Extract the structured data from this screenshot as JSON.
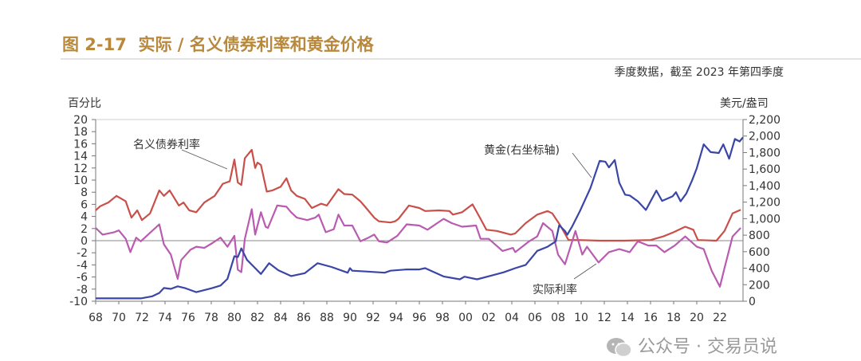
{
  "title": "图 2-17  实际 / 名义债券利率和黄金价格",
  "subtitle": "季度数据，截至 2023 年第四季度",
  "watermark": "公众号 · 交易员说",
  "chart_data": {
    "type": "line",
    "title": "图 2-17  实际 / 名义债券利率和黄金价格",
    "ylabel_left": "百分比",
    "ylabel_right": "美元/盎司",
    "xlim": [
      1968,
      2024
    ],
    "ylim_left": [
      -10,
      20
    ],
    "ylim_right": [
      0,
      2200
    ],
    "x_ticks": [
      "68",
      "70",
      "72",
      "74",
      "76",
      "78",
      "80",
      "82",
      "84",
      "86",
      "88",
      "90",
      "92",
      "94",
      "96",
      "98",
      "00",
      "02",
      "04",
      "06",
      "08",
      "10",
      "12",
      "14",
      "16",
      "18",
      "20",
      "22"
    ],
    "y_ticks_left": [
      "20",
      "18",
      "16",
      "14",
      "12",
      "10",
      "8",
      "6",
      "4",
      "2",
      "0",
      "-2",
      "-4",
      "-6",
      "-8",
      "-10"
    ],
    "y_ticks_right": [
      "2,200",
      "2,000",
      "1,800",
      "1,600",
      "1,400",
      "1,200",
      "1,000",
      "800",
      "600",
      "400",
      "200",
      "0"
    ],
    "grid": "zero line only",
    "colors": {
      "nominal": "#c9504a",
      "real": "#b95bb0",
      "gold": "#3a46a6"
    },
    "annotations": {
      "nominal": "名义债券利率",
      "gold": "黄金(右坐标轴)",
      "real": "实际利率"
    },
    "series": [
      {
        "name": "名义债券利率",
        "axis": "left",
        "points": [
          [
            1968,
            5.0
          ],
          [
            1968.4,
            5.7
          ],
          [
            1969.1,
            6.3
          ],
          [
            1969.8,
            7.4
          ],
          [
            1970.6,
            6.5
          ],
          [
            1971.1,
            3.8
          ],
          [
            1971.6,
            5.0
          ],
          [
            1972.0,
            3.4
          ],
          [
            1972.7,
            4.5
          ],
          [
            1973.5,
            8.3
          ],
          [
            1973.9,
            7.4
          ],
          [
            1974.4,
            8.3
          ],
          [
            1975.2,
            5.8
          ],
          [
            1975.6,
            6.3
          ],
          [
            1976.1,
            5.0
          ],
          [
            1976.7,
            4.7
          ],
          [
            1977.4,
            6.3
          ],
          [
            1978.3,
            7.4
          ],
          [
            1979.0,
            9.4
          ],
          [
            1979.6,
            9.8
          ],
          [
            1980.0,
            13.4
          ],
          [
            1980.3,
            9.6
          ],
          [
            1980.6,
            9.2
          ],
          [
            1980.9,
            13.6
          ],
          [
            1981.5,
            15.0
          ],
          [
            1981.8,
            12.0
          ],
          [
            1982.0,
            12.9
          ],
          [
            1982.3,
            12.5
          ],
          [
            1982.8,
            8.1
          ],
          [
            1983.3,
            8.3
          ],
          [
            1984.0,
            8.9
          ],
          [
            1984.5,
            10.3
          ],
          [
            1984.9,
            8.3
          ],
          [
            1985.4,
            7.4
          ],
          [
            1986.1,
            6.9
          ],
          [
            1986.7,
            5.4
          ],
          [
            1987.5,
            6.1
          ],
          [
            1988.0,
            5.8
          ],
          [
            1989.0,
            8.5
          ],
          [
            1989.5,
            7.7
          ],
          [
            1990.2,
            7.6
          ],
          [
            1990.9,
            6.5
          ],
          [
            1991.4,
            5.4
          ],
          [
            1992.1,
            3.8
          ],
          [
            1992.5,
            3.2
          ],
          [
            1993.5,
            3.0
          ],
          [
            1993.9,
            3.2
          ],
          [
            1994.2,
            3.6
          ],
          [
            1995.1,
            5.8
          ],
          [
            1996.0,
            5.4
          ],
          [
            1996.5,
            4.9
          ],
          [
            1997.7,
            5.0
          ],
          [
            1998.6,
            4.9
          ],
          [
            1998.9,
            4.3
          ],
          [
            1999.7,
            4.7
          ],
          [
            2000.6,
            6.0
          ],
          [
            2001.3,
            3.6
          ],
          [
            2001.8,
            1.8
          ],
          [
            2002.7,
            1.6
          ],
          [
            2003.9,
            1.0
          ],
          [
            2004.3,
            1.2
          ],
          [
            2005.2,
            2.9
          ],
          [
            2006.2,
            4.3
          ],
          [
            2007.1,
            4.9
          ],
          [
            2007.5,
            4.5
          ],
          [
            2008.2,
            2.5
          ],
          [
            2008.9,
            0.1
          ],
          [
            2009.8,
            0.1
          ],
          [
            2011.6,
            0
          ],
          [
            2013.7,
            0
          ],
          [
            2016.0,
            0.1
          ],
          [
            2017.1,
            0.7
          ],
          [
            2018.0,
            1.4
          ],
          [
            2019.0,
            2.3
          ],
          [
            2019.7,
            1.8
          ],
          [
            2020.1,
            0.1
          ],
          [
            2021.7,
            0
          ],
          [
            2022.4,
            1.6
          ],
          [
            2023.1,
            4.5
          ],
          [
            2023.8,
            5.1
          ]
        ]
      },
      {
        "name": "实际利率",
        "axis": "left",
        "points": [
          [
            1968,
            2.1
          ],
          [
            1968.6,
            1.0
          ],
          [
            1969.6,
            1.4
          ],
          [
            1970.0,
            1.7
          ],
          [
            1970.6,
            0.3
          ],
          [
            1971.0,
            -1.9
          ],
          [
            1971.5,
            0.5
          ],
          [
            1971.9,
            -0.1
          ],
          [
            1973.5,
            2.7
          ],
          [
            1973.9,
            -0.6
          ],
          [
            1974.5,
            -2.3
          ],
          [
            1975.1,
            -6.3
          ],
          [
            1975.4,
            -3.2
          ],
          [
            1976.2,
            -1.5
          ],
          [
            1976.7,
            -1.0
          ],
          [
            1977.4,
            -1.2
          ],
          [
            1978.1,
            -0.4
          ],
          [
            1978.8,
            0.5
          ],
          [
            1979.4,
            -1.0
          ],
          [
            1980.0,
            0.8
          ],
          [
            1980.3,
            -4.8
          ],
          [
            1980.6,
            -5.2
          ],
          [
            1980.9,
            0.3
          ],
          [
            1981.5,
            5.2
          ],
          [
            1981.8,
            1.0
          ],
          [
            1982.3,
            4.7
          ],
          [
            1982.7,
            2.3
          ],
          [
            1982.9,
            2.1
          ],
          [
            1983.7,
            5.8
          ],
          [
            1984.5,
            5.6
          ],
          [
            1984.9,
            4.7
          ],
          [
            1985.4,
            3.8
          ],
          [
            1986.3,
            3.4
          ],
          [
            1987.0,
            3.8
          ],
          [
            1987.3,
            4.3
          ],
          [
            1987.9,
            1.4
          ],
          [
            1988.6,
            1.9
          ],
          [
            1989.0,
            4.3
          ],
          [
            1989.5,
            2.5
          ],
          [
            1990.2,
            2.5
          ],
          [
            1990.9,
            -0.1
          ],
          [
            1991.6,
            0.5
          ],
          [
            1992.1,
            1.0
          ],
          [
            1992.5,
            -0.1
          ],
          [
            1993.2,
            -0.3
          ],
          [
            1994.1,
            0.8
          ],
          [
            1994.9,
            2.7
          ],
          [
            1996.0,
            2.5
          ],
          [
            1996.7,
            1.8
          ],
          [
            1998.1,
            3.6
          ],
          [
            1998.8,
            2.9
          ],
          [
            1999.7,
            2.3
          ],
          [
            2000.9,
            2.5
          ],
          [
            2001.3,
            0.3
          ],
          [
            2002.0,
            0.3
          ],
          [
            2003.2,
            -1.7
          ],
          [
            2004.1,
            -1.2
          ],
          [
            2004.3,
            -1.9
          ],
          [
            2005.5,
            -0.1
          ],
          [
            2006.2,
            0.7
          ],
          [
            2006.7,
            2.9
          ],
          [
            2007.5,
            1.6
          ],
          [
            2008.0,
            -2.3
          ],
          [
            2008.6,
            -3.9
          ],
          [
            2009.5,
            1.6
          ],
          [
            2010.1,
            -2.3
          ],
          [
            2010.5,
            -1.0
          ],
          [
            2011.5,
            -3.6
          ],
          [
            2012.4,
            -1.9
          ],
          [
            2013.3,
            -1.4
          ],
          [
            2014.2,
            -1.9
          ],
          [
            2014.9,
            -0.1
          ],
          [
            2015.8,
            -0.8
          ],
          [
            2016.5,
            -0.8
          ],
          [
            2017.2,
            -1.9
          ],
          [
            2018.1,
            -0.8
          ],
          [
            2019.0,
            0.7
          ],
          [
            2020.0,
            -1.0
          ],
          [
            2020.6,
            -1.4
          ],
          [
            2021.3,
            -5.0
          ],
          [
            2022.0,
            -7.6
          ],
          [
            2022.4,
            -4.5
          ],
          [
            2023.1,
            0.7
          ],
          [
            2023.8,
            2.1
          ]
        ]
      },
      {
        "name": "黄金(右坐标轴)",
        "axis": "right",
        "points": [
          [
            1968,
            35
          ],
          [
            1971.9,
            35
          ],
          [
            1972.9,
            60
          ],
          [
            1973.5,
            100
          ],
          [
            1973.9,
            160
          ],
          [
            1974.5,
            150
          ],
          [
            1975.1,
            180
          ],
          [
            1975.7,
            160
          ],
          [
            1976.7,
            110
          ],
          [
            1978.1,
            160
          ],
          [
            1978.8,
            190
          ],
          [
            1979.4,
            270
          ],
          [
            1980.0,
            545
          ],
          [
            1980.3,
            535
          ],
          [
            1980.6,
            640
          ],
          [
            1981.1,
            500
          ],
          [
            1981.8,
            400
          ],
          [
            1982.3,
            330
          ],
          [
            1983.0,
            460
          ],
          [
            1983.8,
            375
          ],
          [
            1984.9,
            305
          ],
          [
            1986.1,
            340
          ],
          [
            1987.2,
            460
          ],
          [
            1988.4,
            415
          ],
          [
            1989.8,
            345
          ],
          [
            1990.0,
            400
          ],
          [
            1990.2,
            370
          ],
          [
            1991.4,
            360
          ],
          [
            1993.0,
            345
          ],
          [
            1993.5,
            370
          ],
          [
            1994.9,
            385
          ],
          [
            1996.0,
            385
          ],
          [
            1996.5,
            400
          ],
          [
            1998.1,
            300
          ],
          [
            1999.5,
            265
          ],
          [
            1999.9,
            297
          ],
          [
            2001.0,
            265
          ],
          [
            2002.2,
            310
          ],
          [
            2003.3,
            350
          ],
          [
            2004.3,
            400
          ],
          [
            2005.2,
            440
          ],
          [
            2006.2,
            610
          ],
          [
            2007.1,
            660
          ],
          [
            2007.8,
            725
          ],
          [
            2008.1,
            920
          ],
          [
            2008.6,
            850
          ],
          [
            2008.8,
            805
          ],
          [
            2009.2,
            900
          ],
          [
            2009.9,
            1095
          ],
          [
            2010.8,
            1370
          ],
          [
            2011.6,
            1700
          ],
          [
            2012.1,
            1690
          ],
          [
            2012.4,
            1620
          ],
          [
            2012.9,
            1710
          ],
          [
            2013.3,
            1435
          ],
          [
            2013.8,
            1290
          ],
          [
            2014.2,
            1280
          ],
          [
            2014.9,
            1210
          ],
          [
            2015.6,
            1105
          ],
          [
            2016.5,
            1340
          ],
          [
            2017.0,
            1215
          ],
          [
            2017.9,
            1270
          ],
          [
            2018.2,
            1320
          ],
          [
            2018.6,
            1210
          ],
          [
            2019.1,
            1305
          ],
          [
            2019.6,
            1465
          ],
          [
            2020.0,
            1610
          ],
          [
            2020.6,
            1900
          ],
          [
            2021.2,
            1805
          ],
          [
            2021.9,
            1795
          ],
          [
            2022.3,
            1900
          ],
          [
            2022.8,
            1725
          ],
          [
            2023.3,
            1965
          ],
          [
            2023.7,
            1935
          ],
          [
            2024.0,
            1985
          ]
        ]
      }
    ]
  }
}
